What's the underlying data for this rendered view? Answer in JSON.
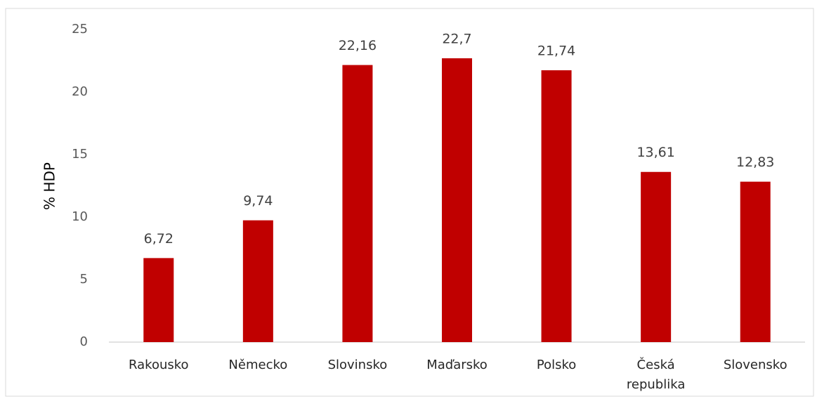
{
  "chart_data": {
    "type": "bar",
    "y_label": "% HDP",
    "categories": [
      "Rakousko",
      "Německo",
      "Slovinsko",
      "Maďarsko",
      "Polsko",
      "Česká republika",
      "Slovensko"
    ],
    "values": [
      6.72,
      9.74,
      22.16,
      22.7,
      21.74,
      13.61,
      12.83
    ],
    "value_labels": [
      "6,72",
      "9,74",
      "22,16",
      "22,7",
      "21,74",
      "13,61",
      "12,83"
    ],
    "color": "#c00000",
    "ylim": [
      0,
      25
    ],
    "yticks": [
      0,
      5,
      10,
      15,
      20,
      25
    ],
    "grid": false
  }
}
